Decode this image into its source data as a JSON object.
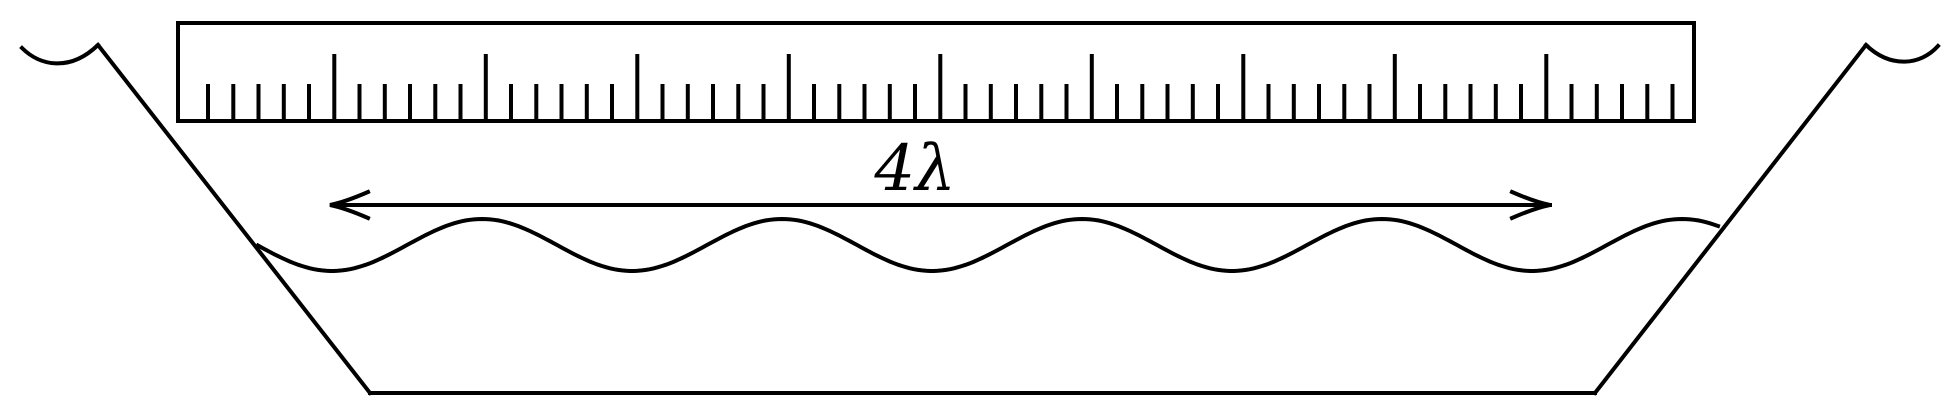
{
  "diagram": {
    "distance_label": "4λ"
  },
  "colors": {
    "stroke": "#000000",
    "background": "#ffffff"
  },
  "ruler": {
    "major_divisions": 10,
    "minor_per_major": 5,
    "half_tick_at_minor": 5
  },
  "wave": {
    "wavelengths_marked": 4
  }
}
